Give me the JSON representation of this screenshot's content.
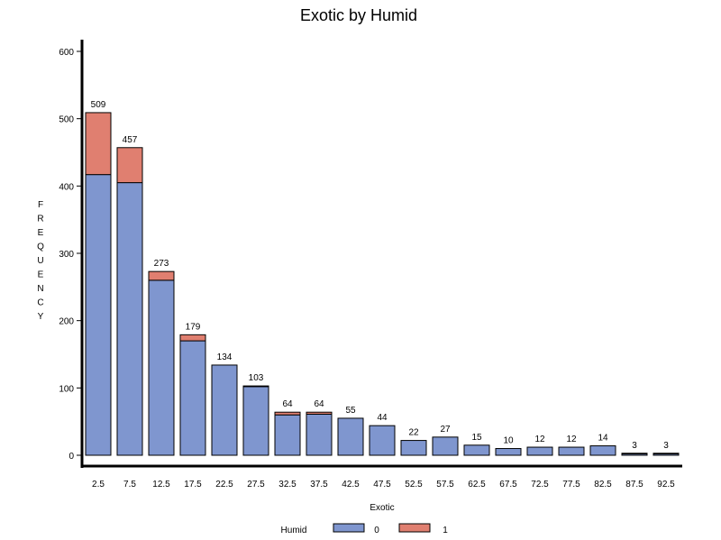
{
  "chart_data": {
    "type": "bar",
    "stacked": true,
    "title": "Exotic by Humid",
    "xlabel": "Exotic",
    "ylabel": "FREQUENCY",
    "ylim": [
      0,
      600
    ],
    "yticks": [
      0,
      100,
      200,
      300,
      400,
      500,
      600
    ],
    "categories": [
      "2.5",
      "7.5",
      "12.5",
      "17.5",
      "22.5",
      "27.5",
      "32.5",
      "37.5",
      "42.5",
      "47.5",
      "52.5",
      "57.5",
      "62.5",
      "67.5",
      "72.5",
      "77.5",
      "82.5",
      "87.5",
      "92.5"
    ],
    "series": [
      {
        "name": "0",
        "color": "#7f96cf",
        "values": [
          417,
          405,
          260,
          170,
          134,
          102,
          60,
          61,
          55,
          44,
          22,
          27,
          15,
          10,
          12,
          12,
          14,
          2,
          2
        ]
      },
      {
        "name": "1",
        "color": "#e07f70",
        "values": [
          92,
          52,
          13,
          9,
          0,
          1,
          4,
          3,
          0,
          0,
          0,
          0,
          0,
          0,
          0,
          0,
          0,
          1,
          1
        ]
      }
    ],
    "totals": [
      509,
      457,
      273,
      179,
      134,
      103,
      64,
      64,
      55,
      44,
      22,
      27,
      15,
      10,
      12,
      12,
      14,
      3,
      3
    ],
    "legend": {
      "title": "Humid",
      "position": "bottom"
    }
  }
}
